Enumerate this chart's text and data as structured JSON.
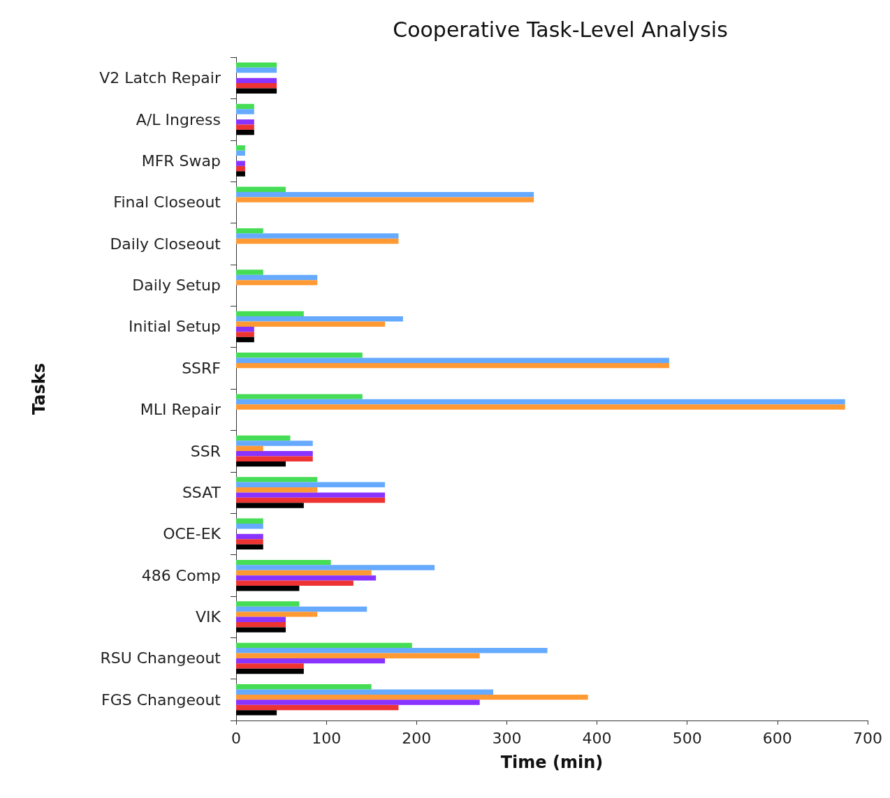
{
  "chart_data": {
    "type": "bar",
    "orientation": "horizontal",
    "title": "Cooperative Task-Level Analysis",
    "xlabel": "Time (min)",
    "ylabel": "Tasks",
    "categories": [
      "V2 Latch Repair",
      "A/L Ingress",
      "MFR Swap",
      "Final Closeout",
      "Daily Closeout",
      "Daily Setup",
      "Initial Setup",
      "SSRF",
      "MLI Repair",
      "SSR",
      "SSAT",
      "OCE-EK",
      "486 Comp",
      "VIK",
      "RSU Changeout",
      "FGS Changeout"
    ],
    "xlim": [
      0,
      700
    ],
    "xticks": [
      0,
      100,
      200,
      300,
      400,
      500,
      600,
      700
    ],
    "grid": false,
    "series": [
      {
        "color": "#44dd55",
        "values": [
          45,
          20,
          10,
          55,
          30,
          30,
          75,
          140,
          140,
          60,
          90,
          30,
          105,
          70,
          195,
          150
        ]
      },
      {
        "color": "#66aaff",
        "values": [
          45,
          20,
          10,
          330,
          180,
          90,
          185,
          480,
          675,
          85,
          165,
          30,
          220,
          145,
          345,
          285
        ]
      },
      {
        "color": "#ff9933",
        "values": [
          null,
          null,
          null,
          330,
          180,
          90,
          165,
          480,
          675,
          30,
          90,
          null,
          150,
          90,
          270,
          390
        ]
      },
      {
        "color": "#8833ff",
        "values": [
          45,
          20,
          10,
          null,
          null,
          null,
          20,
          null,
          null,
          85,
          165,
          30,
          155,
          55,
          165,
          270
        ]
      },
      {
        "color": "#ee3333",
        "values": [
          45,
          20,
          10,
          null,
          null,
          null,
          20,
          null,
          null,
          85,
          165,
          30,
          130,
          55,
          75,
          180
        ]
      },
      {
        "color": "#000000",
        "values": [
          45,
          20,
          10,
          null,
          null,
          null,
          20,
          null,
          null,
          55,
          75,
          30,
          70,
          55,
          75,
          45
        ]
      }
    ]
  }
}
